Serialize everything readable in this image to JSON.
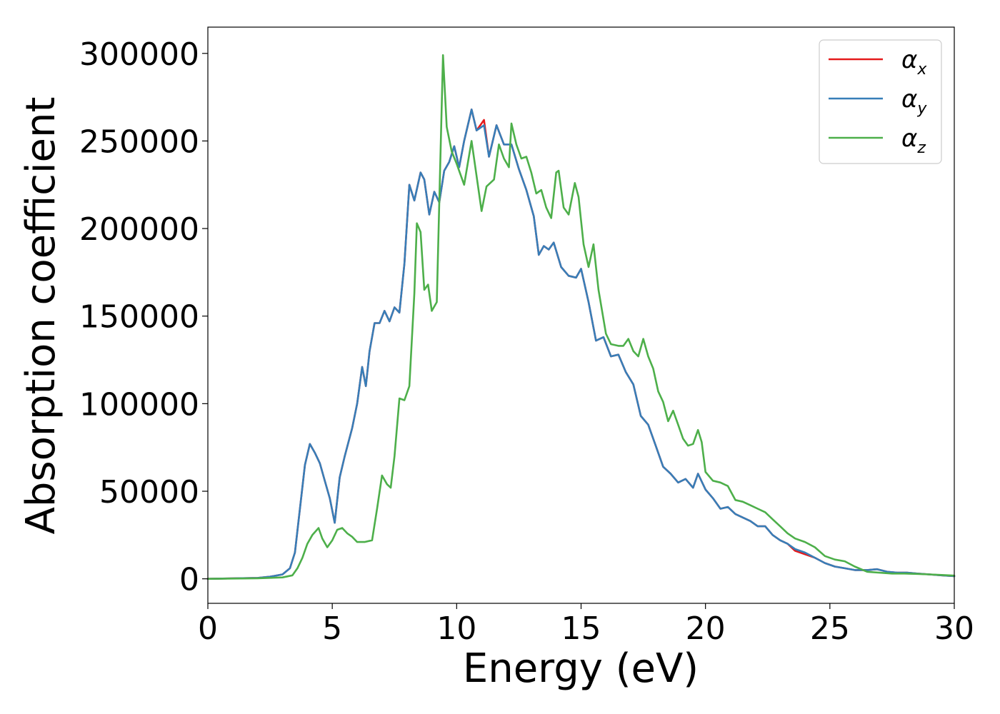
{
  "chart_data": {
    "type": "line",
    "xlabel": "Energy (eV)",
    "ylabel": "Absorption coefficient",
    "xlim": [
      0,
      30
    ],
    "ylim": [
      -14000,
      315000
    ],
    "x_ticks": [
      0,
      5,
      10,
      15,
      20,
      25,
      30
    ],
    "x_tick_labels": [
      "0",
      "5",
      "10",
      "15",
      "20",
      "25",
      "30"
    ],
    "y_ticks": [
      0,
      50000,
      100000,
      150000,
      200000,
      250000,
      300000
    ],
    "y_tick_labels": [
      "0",
      "50000",
      "100000",
      "150000",
      "200000",
      "250000",
      "300000"
    ],
    "grid": false,
    "legend_position": "top-right",
    "colors": {
      "alpha_x": "#e41a1c",
      "alpha_y": "#377eb8",
      "alpha_z": "#4daf4a"
    },
    "series": [
      {
        "name": "α_x",
        "legend_base": "α",
        "legend_sub": "x",
        "color": "#e41a1c",
        "x": [
          0,
          2,
          2.5,
          3,
          3.3,
          3.5,
          3.7,
          3.9,
          4.1,
          4.3,
          4.5,
          4.7,
          4.9,
          5.1,
          5.3,
          5.5,
          5.8,
          6.0,
          6.2,
          6.35,
          6.5,
          6.7,
          6.9,
          7.1,
          7.3,
          7.5,
          7.7,
          7.9,
          8.1,
          8.3,
          8.55,
          8.7,
          8.9,
          9.1,
          9.3,
          9.5,
          9.7,
          9.9,
          10.1,
          10.3,
          10.6,
          10.8,
          11.0,
          11.1,
          11.3,
          11.6,
          11.9,
          12.2,
          12.5,
          12.8,
          13.1,
          13.3,
          13.5,
          13.7,
          13.9,
          14.2,
          14.5,
          14.8,
          15.0,
          15.3,
          15.6,
          15.9,
          16.2,
          16.5,
          16.8,
          17.1,
          17.4,
          17.7,
          18.0,
          18.3,
          18.6,
          18.9,
          19.2,
          19.5,
          19.7,
          20.0,
          20.3,
          20.6,
          20.9,
          21.2,
          21.5,
          21.8,
          22.1,
          22.4,
          22.7,
          23.0,
          23.3,
          23.6,
          24.0,
          24.4,
          24.8,
          25.2,
          25.6,
          26.0,
          26.5,
          26.9,
          27.3,
          27.7,
          28.1,
          28.5,
          29.0,
          29.5,
          30.0
        ],
        "y": [
          0,
          500,
          1200,
          2500,
          6000,
          15000,
          40000,
          65000,
          77000,
          72000,
          66000,
          56000,
          46000,
          32000,
          58000,
          70000,
          86000,
          100000,
          121000,
          110000,
          130000,
          146000,
          146000,
          153000,
          147000,
          155000,
          152000,
          180000,
          225000,
          216000,
          232000,
          228000,
          208000,
          221000,
          215000,
          233000,
          238000,
          247000,
          235000,
          250000,
          268000,
          256000,
          260000,
          262000,
          241000,
          259000,
          248000,
          248000,
          234000,
          222000,
          207000,
          185000,
          190000,
          188000,
          192000,
          178000,
          173000,
          172000,
          177000,
          158000,
          136000,
          138000,
          127000,
          128000,
          118000,
          111000,
          93000,
          88000,
          76000,
          64000,
          60000,
          55000,
          57000,
          52000,
          60000,
          51000,
          46000,
          40000,
          41000,
          37000,
          35000,
          33000,
          30000,
          30000,
          25000,
          22000,
          20000,
          16000,
          14000,
          12000,
          9000,
          7000,
          6000,
          5000,
          5000,
          5500,
          4000,
          3500,
          3500,
          3000,
          2500,
          2000,
          1500
        ]
      },
      {
        "name": "α_y",
        "legend_base": "α",
        "legend_sub": "y",
        "color": "#377eb8",
        "x": [
          0,
          2,
          2.5,
          3,
          3.3,
          3.5,
          3.7,
          3.9,
          4.1,
          4.3,
          4.5,
          4.7,
          4.9,
          5.1,
          5.3,
          5.5,
          5.8,
          6.0,
          6.2,
          6.35,
          6.5,
          6.7,
          6.9,
          7.1,
          7.3,
          7.5,
          7.7,
          7.9,
          8.1,
          8.3,
          8.55,
          8.7,
          8.9,
          9.1,
          9.3,
          9.5,
          9.7,
          9.9,
          10.1,
          10.3,
          10.6,
          10.8,
          11.0,
          11.1,
          11.3,
          11.6,
          11.9,
          12.2,
          12.5,
          12.8,
          13.1,
          13.3,
          13.5,
          13.7,
          13.9,
          14.2,
          14.5,
          14.8,
          15.0,
          15.3,
          15.6,
          15.9,
          16.2,
          16.5,
          16.8,
          17.1,
          17.4,
          17.7,
          18.0,
          18.3,
          18.6,
          18.9,
          19.2,
          19.5,
          19.7,
          20.0,
          20.3,
          20.6,
          20.9,
          21.2,
          21.5,
          21.8,
          22.1,
          22.4,
          22.7,
          23.0,
          23.3,
          23.6,
          24.0,
          24.4,
          24.8,
          25.2,
          25.6,
          26.0,
          26.5,
          26.9,
          27.3,
          27.7,
          28.1,
          28.5,
          29.0,
          29.5,
          30.0
        ],
        "y": [
          0,
          500,
          1200,
          2500,
          6000,
          15000,
          40000,
          65000,
          77000,
          72000,
          66000,
          56000,
          46000,
          32000,
          58000,
          70000,
          86000,
          100000,
          121000,
          110000,
          130000,
          146000,
          146000,
          153000,
          147000,
          155000,
          152000,
          180000,
          225000,
          216000,
          232000,
          228000,
          208000,
          221000,
          215000,
          233000,
          238000,
          247000,
          235000,
          250000,
          268000,
          256000,
          258000,
          259000,
          241000,
          259000,
          248000,
          248000,
          234000,
          222000,
          207000,
          185000,
          190000,
          188000,
          192000,
          178000,
          173000,
          172000,
          177000,
          158000,
          136000,
          138000,
          127000,
          128000,
          118000,
          111000,
          93000,
          88000,
          76000,
          64000,
          60000,
          55000,
          57000,
          52000,
          60000,
          51000,
          46000,
          40000,
          41000,
          37000,
          35000,
          33000,
          30000,
          30000,
          25000,
          22000,
          20000,
          17000,
          15000,
          12000,
          9000,
          7000,
          6000,
          5000,
          5000,
          5500,
          4000,
          3500,
          3500,
          3000,
          2500,
          2000,
          1500
        ]
      },
      {
        "name": "α_z",
        "legend_base": "α",
        "legend_sub": "z",
        "color": "#4daf4a",
        "x": [
          0,
          2,
          3,
          3.4,
          3.6,
          3.8,
          4.0,
          4.2,
          4.45,
          4.6,
          4.8,
          5.0,
          5.2,
          5.4,
          5.6,
          5.8,
          6.0,
          6.3,
          6.6,
          6.8,
          7.0,
          7.2,
          7.35,
          7.5,
          7.7,
          7.9,
          8.1,
          8.3,
          8.4,
          8.55,
          8.7,
          8.85,
          9.0,
          9.2,
          9.3,
          9.45,
          9.6,
          9.8,
          10.0,
          10.3,
          10.6,
          10.8,
          11.0,
          11.2,
          11.5,
          11.7,
          11.9,
          12.1,
          12.2,
          12.4,
          12.6,
          12.8,
          13.0,
          13.2,
          13.4,
          13.6,
          13.8,
          14.0,
          14.1,
          14.3,
          14.5,
          14.75,
          14.9,
          15.1,
          15.3,
          15.5,
          15.7,
          16.0,
          16.2,
          16.5,
          16.7,
          16.9,
          17.1,
          17.3,
          17.5,
          17.7,
          17.9,
          18.1,
          18.3,
          18.5,
          18.7,
          18.9,
          19.1,
          19.3,
          19.5,
          19.7,
          19.85,
          20.0,
          20.3,
          20.6,
          20.9,
          21.2,
          21.5,
          21.8,
          22.1,
          22.4,
          22.7,
          23.0,
          23.3,
          23.6,
          24.0,
          24.4,
          24.8,
          25.2,
          25.6,
          26.0,
          26.5,
          27.0,
          27.5,
          28.0,
          28.5,
          29.0,
          29.5,
          30.0
        ],
        "y": [
          0,
          300,
          800,
          2000,
          6000,
          12000,
          20000,
          25000,
          29000,
          23000,
          18000,
          22000,
          28000,
          29000,
          26000,
          24000,
          21000,
          21000,
          22000,
          40000,
          59000,
          54000,
          52000,
          70000,
          103000,
          102000,
          110000,
          163000,
          203000,
          198000,
          165000,
          168000,
          153000,
          158000,
          215000,
          299000,
          258000,
          244000,
          237000,
          225000,
          250000,
          230000,
          210000,
          224000,
          228000,
          248000,
          240000,
          235000,
          260000,
          248000,
          240000,
          241000,
          232000,
          220000,
          222000,
          212000,
          206000,
          232000,
          233000,
          212000,
          208000,
          226000,
          218000,
          191000,
          178000,
          191000,
          165000,
          140000,
          134000,
          133000,
          133000,
          137000,
          130000,
          127000,
          137000,
          127000,
          120000,
          107000,
          101000,
          90000,
          96000,
          88000,
          80000,
          76000,
          77000,
          85000,
          78000,
          61000,
          56000,
          55000,
          53000,
          45000,
          44000,
          42000,
          40000,
          38000,
          34000,
          30000,
          26000,
          23000,
          21000,
          18000,
          13000,
          11000,
          10000,
          7000,
          4000,
          3500,
          3000,
          3000,
          2800,
          2500,
          2200,
          1800
        ]
      }
    ]
  }
}
